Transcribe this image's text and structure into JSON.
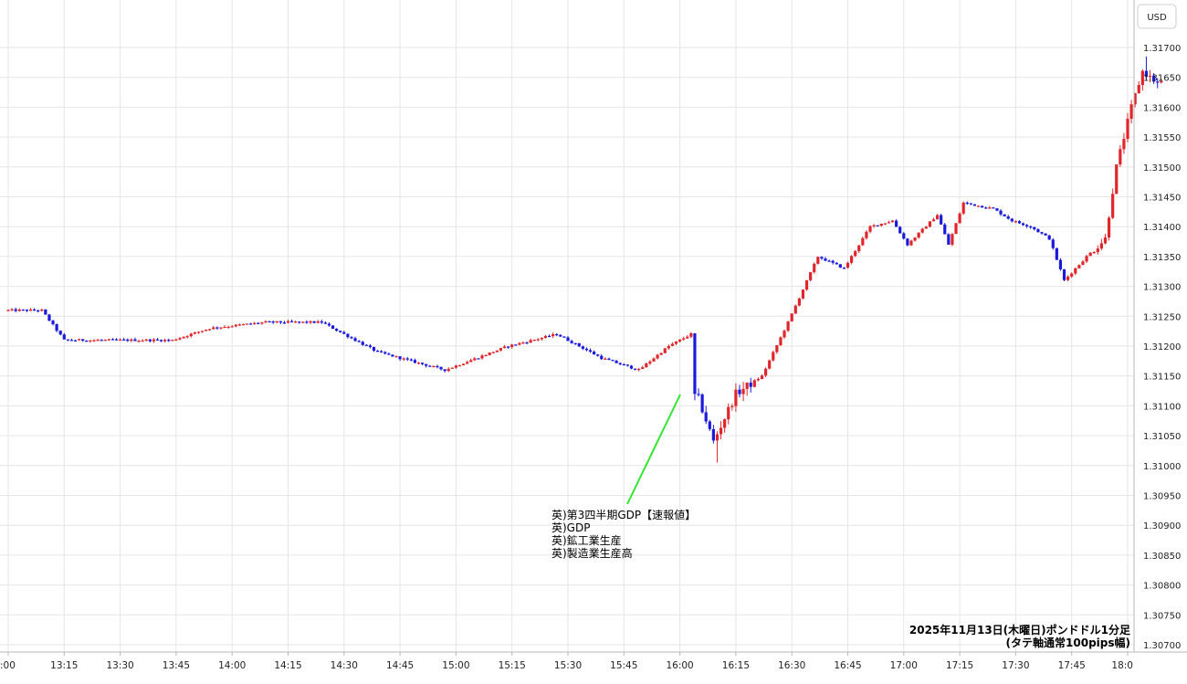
{
  "chart_data": {
    "type": "candlestick",
    "currency_label": "USD",
    "y_ticks": [
      "1.31700",
      "1.31650",
      "1.31600",
      "1.31550",
      "1.31500",
      "1.31450",
      "1.31400",
      "1.31350",
      "1.31300",
      "1.31250",
      "1.31200",
      "1.31150",
      "1.31100",
      "1.31050",
      "1.31000",
      "1.30950",
      "1.30900",
      "1.30850",
      "1.30800",
      "1.30750",
      "1.30700"
    ],
    "y_range": [
      1.307,
      1.3172
    ],
    "x_ticks": [
      ":00",
      "13:15",
      "13:30",
      "13:45",
      "14:00",
      "14:15",
      "14:30",
      "14:45",
      "15:00",
      "15:15",
      "15:30",
      "15:45",
      "16:00",
      "16:15",
      "16:30",
      "16:45",
      "17:00",
      "17:15",
      "17:30",
      "17:45",
      "18:0"
    ],
    "grid": true,
    "up_color": "#e0262b",
    "down_color": "#1a1adb",
    "annotation": {
      "lines": [
        "英)第3四半期GDP【速報値】",
        "英)GDP",
        "英)鉱工業生産",
        "英)製造業生産高"
      ],
      "time": "16:00",
      "price": 1.3112,
      "line_color": "#32e632"
    },
    "caption_line1": "2025年11月13日(木曜日)ポンドドル1分足",
    "caption_line2": "(タテ軸通常100pips幅)",
    "key_points": [
      {
        "t": 0,
        "p": 1.3126
      },
      {
        "t": 10,
        "p": 1.3126
      },
      {
        "t": 16,
        "p": 1.3121
      },
      {
        "t": 35,
        "p": 1.3121
      },
      {
        "t": 45,
        "p": 1.3121
      },
      {
        "t": 55,
        "p": 1.3123
      },
      {
        "t": 70,
        "p": 1.3124
      },
      {
        "t": 85,
        "p": 1.3124
      },
      {
        "t": 100,
        "p": 1.3119
      },
      {
        "t": 118,
        "p": 1.3116
      },
      {
        "t": 135,
        "p": 1.312
      },
      {
        "t": 148,
        "p": 1.3122
      },
      {
        "t": 160,
        "p": 1.3118
      },
      {
        "t": 170,
        "p": 1.3116
      },
      {
        "t": 178,
        "p": 1.312
      },
      {
        "t": 184,
        "p": 1.3122
      },
      {
        "t": 185,
        "p": 1.3113
      },
      {
        "t": 190,
        "p": 1.3104
      },
      {
        "t": 196,
        "p": 1.3112
      },
      {
        "t": 203,
        "p": 1.3115
      },
      {
        "t": 210,
        "p": 1.3124
      },
      {
        "t": 218,
        "p": 1.3135
      },
      {
        "t": 225,
        "p": 1.3133
      },
      {
        "t": 232,
        "p": 1.314
      },
      {
        "t": 238,
        "p": 1.3141
      },
      {
        "t": 242,
        "p": 1.3137
      },
      {
        "t": 250,
        "p": 1.3142
      },
      {
        "t": 253,
        "p": 1.3137
      },
      {
        "t": 257,
        "p": 1.3144
      },
      {
        "t": 265,
        "p": 1.3143
      },
      {
        "t": 270,
        "p": 1.3141
      },
      {
        "t": 275,
        "p": 1.314
      },
      {
        "t": 280,
        "p": 1.3138
      },
      {
        "t": 284,
        "p": 1.3131
      },
      {
        "t": 290,
        "p": 1.3135
      },
      {
        "t": 295,
        "p": 1.3138
      },
      {
        "t": 298,
        "p": 1.315
      },
      {
        "t": 302,
        "p": 1.316
      },
      {
        "t": 305,
        "p": 1.3166
      },
      {
        "t": 309,
        "p": 1.3164
      }
    ]
  }
}
